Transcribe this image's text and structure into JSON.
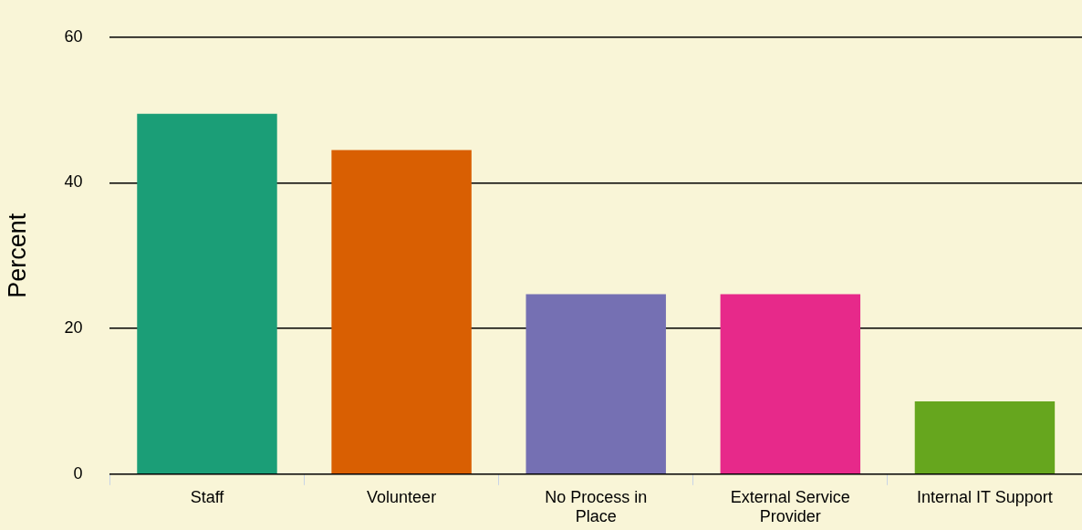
{
  "chart_data": {
    "type": "bar",
    "ylabel": "Percent",
    "categories": [
      "Staff",
      "Volunteer",
      "No Process in Place",
      "External Service Provider",
      "Internal IT Support"
    ],
    "values": [
      49.5,
      44.5,
      24.7,
      24.7,
      10.0
    ],
    "colors": [
      "#1b9e77",
      "#d95f02",
      "#7570b3",
      "#e7298a",
      "#66a61e"
    ],
    "ylim": [
      0,
      60
    ],
    "yticks": [
      0,
      20,
      40,
      60
    ],
    "grid": "y"
  }
}
